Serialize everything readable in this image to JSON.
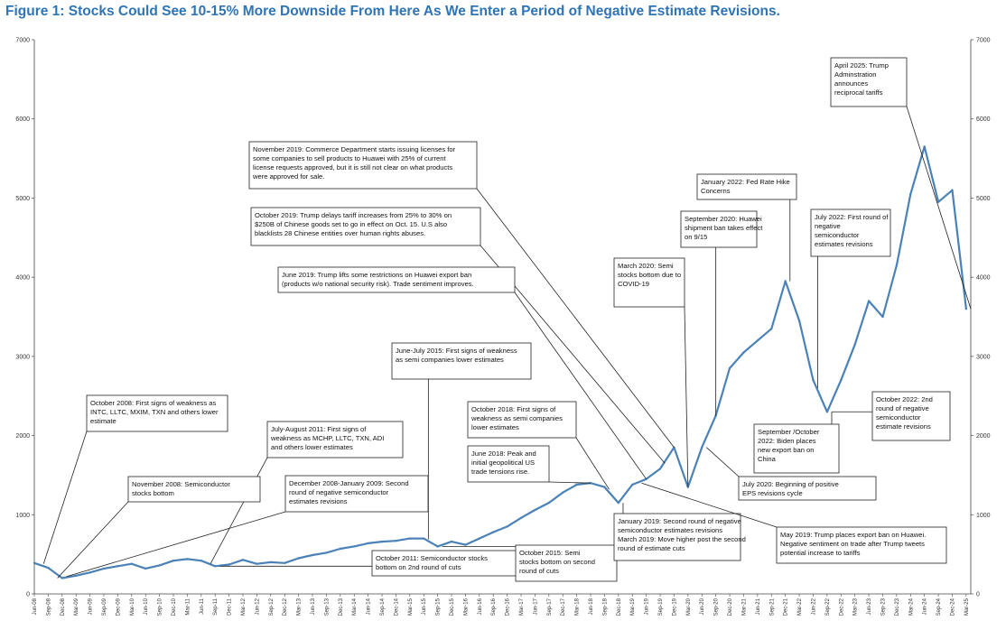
{
  "chart_data": {
    "type": "line",
    "title": "Figure 1: Stocks Could See 10-15% More Downside From Here As We Enter a Period of Negative Estimate Revisions.",
    "xlabel": "",
    "ylabel": "",
    "ylim": [
      0,
      7000
    ],
    "yticks": [
      0,
      1000,
      2000,
      3000,
      4000,
      5000,
      6000,
      7000
    ],
    "grid": false,
    "x_tick_labels": [
      "Jun-08",
      "Sep-08",
      "Dec-08",
      "Mar-09",
      "Jun-09",
      "Sep-09",
      "Dec-09",
      "Mar-10",
      "Jun-10",
      "Sep-10",
      "Dec-10",
      "Mar-11",
      "Jun-11",
      "Sep-11",
      "Dec-11",
      "Mar-12",
      "Jun-12",
      "Sep-12",
      "Dec-12",
      "Mar-13",
      "Jun-13",
      "Sep-13",
      "Dec-13",
      "Mar-14",
      "Jun-14",
      "Sep-14",
      "Dec-14",
      "Mar-15",
      "Jun-15",
      "Sep-15",
      "Dec-15",
      "Mar-16",
      "Jun-16",
      "Sep-16",
      "Dec-16",
      "Mar-17",
      "Jun-17",
      "Sep-17",
      "Dec-17",
      "Mar-18",
      "Jun-18",
      "Sep-18",
      "Dec-18",
      "Mar-19",
      "Jun-19",
      "Sep-19",
      "Dec-19",
      "Mar-20",
      "Jun-20",
      "Sep-20",
      "Dec-20",
      "Mar-21",
      "Jun-21",
      "Sep-21",
      "Dec-21",
      "Mar-22",
      "Jun-22",
      "Sep-22",
      "Dec-22",
      "Mar-23",
      "Jun-23",
      "Sep-23",
      "Dec-23",
      "Mar-24",
      "Jun-24",
      "Sep-24",
      "Dec-24",
      "Mar-25"
    ],
    "series": [
      {
        "color": "#4a82b8",
        "points": [
          [
            "Jun-08",
            390
          ],
          [
            "Sep-08",
            330
          ],
          [
            "Dec-08",
            200
          ],
          [
            "Mar-09",
            230
          ],
          [
            "Jun-09",
            270
          ],
          [
            "Sep-09",
            320
          ],
          [
            "Dec-09",
            350
          ],
          [
            "Mar-10",
            380
          ],
          [
            "Jun-10",
            320
          ],
          [
            "Sep-10",
            360
          ],
          [
            "Dec-10",
            420
          ],
          [
            "Mar-11",
            440
          ],
          [
            "Jun-11",
            420
          ],
          [
            "Sep-11",
            350
          ],
          [
            "Dec-11",
            370
          ],
          [
            "Mar-12",
            430
          ],
          [
            "Jun-12",
            380
          ],
          [
            "Sep-12",
            400
          ],
          [
            "Dec-12",
            390
          ],
          [
            "Mar-13",
            450
          ],
          [
            "Jun-13",
            490
          ],
          [
            "Sep-13",
            520
          ],
          [
            "Dec-13",
            570
          ],
          [
            "Mar-14",
            600
          ],
          [
            "Jun-14",
            640
          ],
          [
            "Sep-14",
            660
          ],
          [
            "Dec-14",
            670
          ],
          [
            "Mar-15",
            700
          ],
          [
            "Jun-15",
            700
          ],
          [
            "Sep-15",
            600
          ],
          [
            "Dec-15",
            660
          ],
          [
            "Mar-16",
            620
          ],
          [
            "Jun-16",
            700
          ],
          [
            "Sep-16",
            780
          ],
          [
            "Dec-16",
            850
          ],
          [
            "Mar-17",
            960
          ],
          [
            "Jun-17",
            1060
          ],
          [
            "Sep-17",
            1150
          ],
          [
            "Dec-17",
            1280
          ],
          [
            "Mar-18",
            1380
          ],
          [
            "Jun-18",
            1400
          ],
          [
            "Sep-18",
            1350
          ],
          [
            "Dec-18",
            1150
          ],
          [
            "Mar-19",
            1380
          ],
          [
            "Jun-19",
            1450
          ],
          [
            "Sep-19",
            1580
          ],
          [
            "Dec-19",
            1850
          ],
          [
            "Mar-20",
            1350
          ],
          [
            "Jun-20",
            1850
          ],
          [
            "Sep-20",
            2250
          ],
          [
            "Dec-20",
            2850
          ],
          [
            "Mar-21",
            3050
          ],
          [
            "Jun-21",
            3200
          ],
          [
            "Sep-21",
            3350
          ],
          [
            "Dec-21",
            3950
          ],
          [
            "Mar-22",
            3450
          ],
          [
            "Jun-22",
            2700
          ],
          [
            "Sep-22",
            2300
          ],
          [
            "Dec-22",
            2700
          ],
          [
            "Mar-23",
            3150
          ],
          [
            "Jun-23",
            3700
          ],
          [
            "Sep-23",
            3500
          ],
          [
            "Dec-23",
            4150
          ],
          [
            "Mar-24",
            5050
          ],
          [
            "Jun-24",
            5650
          ],
          [
            "Sep-24",
            4950
          ],
          [
            "Dec-24",
            5100
          ],
          [
            "Mar-25",
            3600
          ]
        ]
      }
    ],
    "annotations": [
      {
        "lines": [
          "November 2019: Commerce Department starts issuing licenses for",
          "some companies to sell products to Huawei with 25% of current",
          "license requests approved, but it is still not clear on what products",
          "were approved for sale."
        ],
        "target": [
          "Dec-19",
          1850
        ]
      },
      {
        "lines": [
          "October 2019: Trump delays tariff increases from 25% to 30% on",
          "$250B of Chinese goods set to go in effect on Oct. 15. U.S also",
          "blacklists 28 Chinese entities over human rights abuses."
        ],
        "target": [
          "Oct-19",
          1650
        ]
      },
      {
        "lines": [
          "June 2019: Trump lifts some restrictions on Huawei export ban",
          "(products w/o national security risk). Trade sentiment improves."
        ],
        "target": [
          "Jun-19",
          1450
        ]
      },
      {
        "lines": [
          "June-July 2015: First signs of weakness",
          "as semi companies lower estimates"
        ],
        "target": [
          "Jul-15",
          690
        ]
      },
      {
        "lines": [
          "October 2008: First signs of weakness as",
          "INTC, LLTC, MXIM, TXN and others lower",
          "estimate"
        ],
        "target": [
          "Aug-08",
          380
        ]
      },
      {
        "lines": [
          "July-August 2011: First signs of",
          "weakness as MCHP, LLTC, TXN, ADI",
          "and others lower estimates"
        ],
        "target": [
          "Aug-11",
          380
        ]
      },
      {
        "lines": [
          "November 2008: Semiconductor",
          "stocks bottom"
        ],
        "target": [
          "Nov-08",
          200
        ]
      },
      {
        "lines": [
          "December 2008-January 2009: Second",
          "round of negative semiconductor",
          "estimates revisions"
        ],
        "target": [
          "Jan-09",
          220
        ]
      },
      {
        "lines": [
          "October 2018: First signs of",
          "weakness as semi companies",
          "lower estimates"
        ],
        "target": [
          "Oct-18",
          1320
        ]
      },
      {
        "lines": [
          "June 2018: Peak and",
          "initial geopolitical US",
          "trade tensions rise."
        ],
        "target": [
          "Jun-18",
          1400
        ]
      },
      {
        "lines": [
          "October 2011: Semiconductor stocks",
          "bottom on 2nd round of cuts"
        ],
        "target": [
          "Oct-11",
          350
        ]
      },
      {
        "lines": [
          "October 2015: Semi",
          "stocks bottom on second",
          "round of cuts"
        ],
        "target": [
          "Oct-15",
          600
        ]
      },
      {
        "lines": [
          "January 2019: Second round of negative",
          "semiconductor estimates revisions",
          "March 2019: Move higher post the second",
          "round of estimate cuts"
        ],
        "target": [
          "Jan-19",
          1150
        ]
      },
      {
        "lines": [
          "May 2019: Trump places export ban on Huawei.",
          "Negative sentiment on trade after Trump tweets",
          "potential increase to tariffs"
        ],
        "target": [
          "May-19",
          1400
        ]
      },
      {
        "lines": [
          "March 2020: Semi",
          "stocks bottom due to",
          "COVID-19"
        ],
        "target": [
          "Mar-20",
          1350
        ]
      },
      {
        "lines": [
          "September 2020: Huawei",
          "shipment ban takes effect",
          "on 9/15"
        ],
        "target": [
          "Sep-20",
          2250
        ]
      },
      {
        "lines": [
          "January 2022: Fed Rate Hike",
          "Concerns"
        ],
        "target": [
          "Jan-22",
          3950
        ]
      },
      {
        "lines": [
          "July 2020: Beginning of positive",
          "EPS revisions cycle"
        ],
        "target": [
          "Jul-20",
          1850
        ]
      },
      {
        "lines": [
          "July 2022: First round of",
          "negative",
          "semiconductor",
          "estimates revisions"
        ],
        "target": [
          "Jul-22",
          2600
        ]
      },
      {
        "lines": [
          "September /October",
          "2022: Biden places",
          "new export ban on",
          "China"
        ],
        "target": [
          "Oct-22",
          2300
        ]
      },
      {
        "lines": [
          "October 2022: 2nd",
          "round of negative",
          "semiconductor",
          "estimate revisions"
        ],
        "target": [
          "Oct-22",
          2300
        ]
      },
      {
        "lines": [
          "April 2025: Trump",
          "Adminstration",
          "announces",
          "reciprocal tariffs"
        ],
        "target": [
          "Apr-25",
          3600
        ]
      }
    ]
  }
}
